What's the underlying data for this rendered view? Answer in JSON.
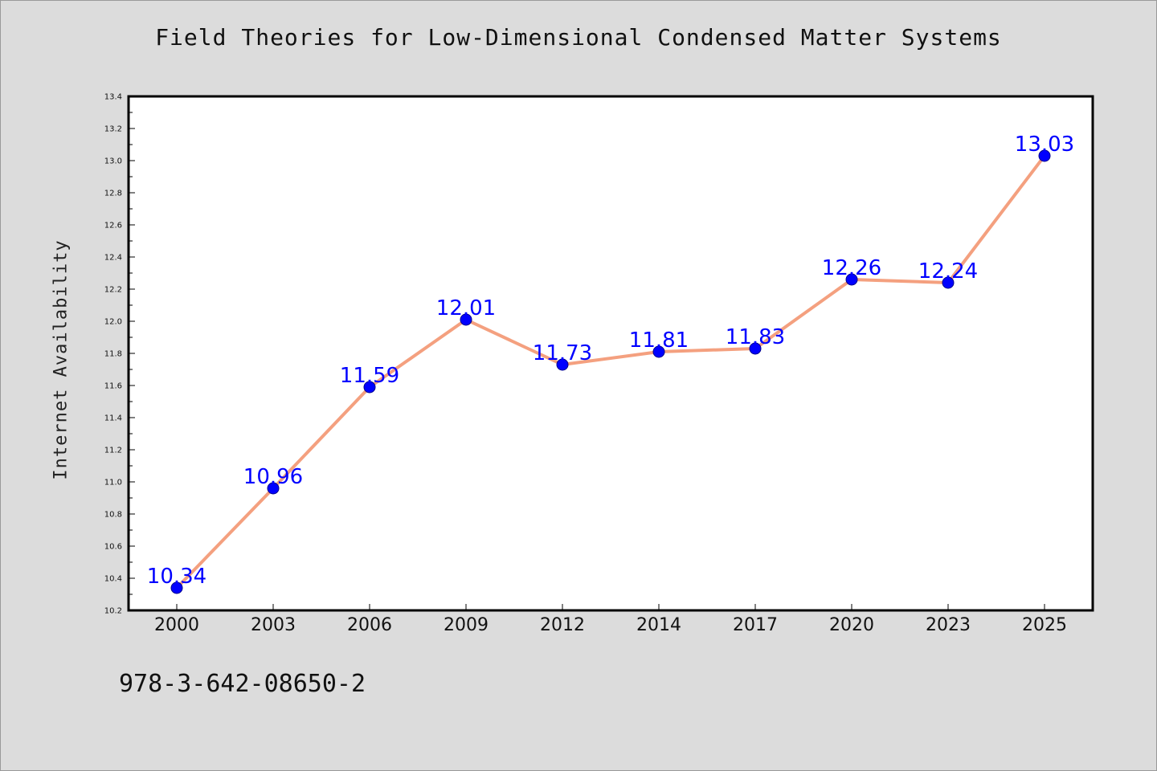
{
  "chart_data": {
    "type": "line",
    "title": "Field Theories for Low-Dimensional Condensed Matter Systems",
    "xlabel": "",
    "ylabel": "Internet Availability",
    "categories": [
      "2000",
      "2003",
      "2006",
      "2009",
      "2012",
      "2014",
      "2017",
      "2020",
      "2023",
      "2025"
    ],
    "series": [
      {
        "values": [
          10.34,
          10.96,
          11.59,
          12.01,
          11.73,
          11.81,
          11.83,
          12.26,
          12.24,
          13.03
        ]
      }
    ],
    "data_labels": [
      "10.34",
      "10.96",
      "11.59",
      "12.01",
      "11.73",
      "11.81",
      "11.83",
      "12.26",
      "12.24",
      "13.03"
    ],
    "ylim": [
      10.2,
      13.4
    ],
    "yticks": [
      "10.2",
      "10.4",
      "10.6",
      "10.8",
      "11.0",
      "11.2",
      "11.4",
      "11.6",
      "11.8",
      "12.0",
      "12.2",
      "12.4",
      "12.6",
      "12.8",
      "13.0",
      "13.2",
      "13.4"
    ],
    "grid": false,
    "legend": "none",
    "colors": {
      "line": "#f4a07f",
      "marker": "#0000ff",
      "marker_edge": "#00008b",
      "label": "#0000ff"
    }
  },
  "footer": {
    "isbn": "978-3-642-08650-2"
  }
}
